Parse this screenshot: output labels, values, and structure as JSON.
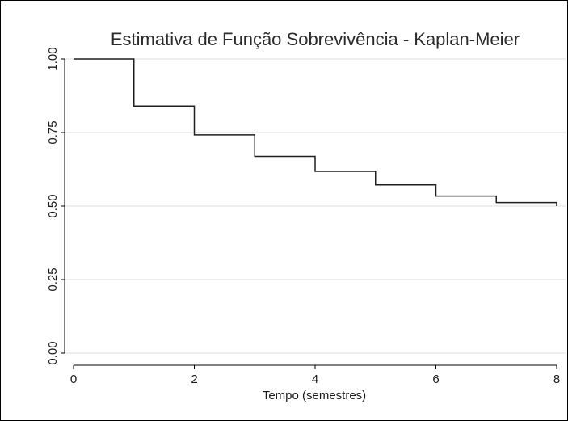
{
  "chart_data": {
    "type": "line",
    "step": true,
    "title": "Estimativa de Função Sobrevivência - Kaplan-Meier",
    "xlabel": "Tempo (semestres)",
    "ylabel": "",
    "xlim": [
      0,
      8
    ],
    "ylim": [
      0,
      1
    ],
    "xticks": [
      0,
      2,
      4,
      6,
      8
    ],
    "xtick_labels": [
      "0",
      "2",
      "4",
      "6",
      "8"
    ],
    "yticks": [
      0,
      0.25,
      0.5,
      0.75,
      1
    ],
    "ytick_labels": [
      "0.00",
      "0.25",
      "0.50",
      "0.75",
      "1.00"
    ],
    "grid": true,
    "series": [
      {
        "x": [
          0,
          1,
          2,
          3,
          4,
          5,
          6,
          7,
          8
        ],
        "values": [
          1.0,
          0.84,
          0.742,
          0.669,
          0.618,
          0.572,
          0.534,
          0.512,
          0.5
        ]
      }
    ],
    "colors": {
      "line": "#1f1f1f",
      "grid": "#dcdcdc",
      "axis": "#000000"
    }
  }
}
